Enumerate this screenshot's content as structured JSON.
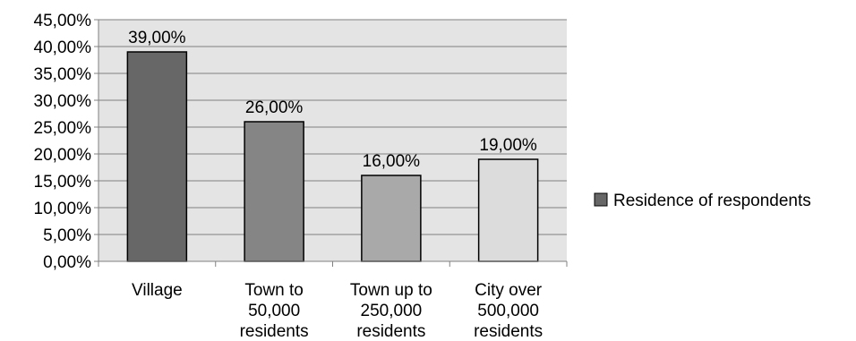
{
  "chart_data": {
    "type": "bar",
    "categories": [
      [
        "Village"
      ],
      [
        "Town to",
        "50,000",
        "residents"
      ],
      [
        "Town up to",
        "250,000",
        "residents"
      ],
      [
        "City over",
        "500,000",
        "residents"
      ]
    ],
    "series": [
      {
        "name": "Residence of respondents",
        "values": [
          39,
          26,
          16,
          19
        ],
        "data_labels": [
          "39,00%",
          "26,00%",
          "16,00%",
          "19,00%"
        ],
        "colors": [
          "#676767",
          "#858585",
          "#a9a9a9",
          "#dcdcdc"
        ]
      }
    ],
    "y_ticks": [
      "0,00%",
      "5,00%",
      "10,00%",
      "15,00%",
      "20,00%",
      "25,00%",
      "30,00%",
      "35,00%",
      "40,00%",
      "45,00%"
    ],
    "ylim": [
      0,
      45
    ],
    "y_step": 5,
    "grid": true,
    "legend_position": "right",
    "plot_background": "#e4e4e4",
    "legend_swatch_color": "#676767"
  }
}
